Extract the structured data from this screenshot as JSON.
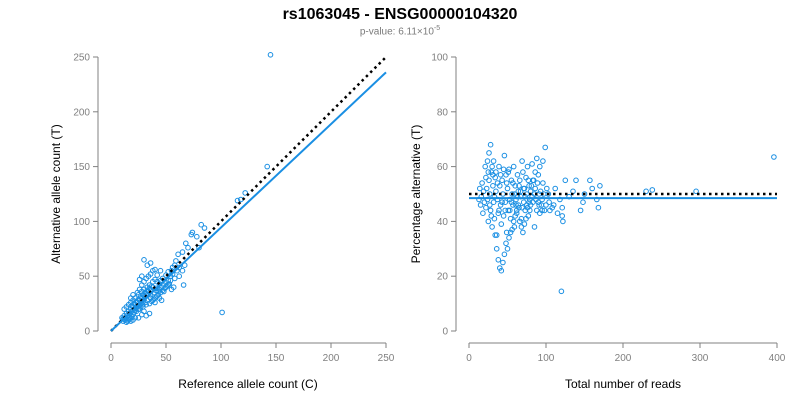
{
  "header": {
    "title": "rs1063045 - ENSG00000104320",
    "pvalue_label": "p-value: 6.11×10",
    "pvalue_exponent": "-5"
  },
  "colors": {
    "points": "#1a8fe3",
    "fit": "#1a8fe3",
    "reference": "#000000",
    "axis": "#808080"
  },
  "chart_data": [
    {
      "type": "scatter",
      "xlabel": "Reference allele count (C)",
      "ylabel": "Alternative allele count (T)",
      "xlim": [
        0,
        250
      ],
      "ylim": [
        0,
        250
      ],
      "xticks": [
        0,
        50,
        100,
        150,
        200,
        250
      ],
      "yticks": [
        0,
        50,
        100,
        150,
        200,
        250
      ],
      "grid": false,
      "reference_line": {
        "style": "dotted",
        "x": [
          0,
          250
        ],
        "y": [
          0,
          250
        ]
      },
      "fit_line": {
        "style": "solid",
        "x": [
          0,
          250
        ],
        "y": [
          0,
          236
        ]
      },
      "points": [
        [
          145,
          252
        ],
        [
          142,
          150
        ],
        [
          118,
          120
        ],
        [
          122,
          126
        ],
        [
          115,
          119
        ],
        [
          101,
          17
        ],
        [
          82,
          97
        ],
        [
          85,
          94
        ],
        [
          78,
          86
        ],
        [
          74,
          90
        ],
        [
          73,
          88
        ],
        [
          80,
          76
        ],
        [
          70,
          76
        ],
        [
          68,
          80
        ],
        [
          65,
          72
        ],
        [
          61,
          70
        ],
        [
          59,
          64
        ],
        [
          58,
          60
        ],
        [
          56,
          58
        ],
        [
          55,
          55
        ],
        [
          52,
          54
        ],
        [
          54,
          50
        ],
        [
          50,
          51
        ],
        [
          47,
          48
        ],
        [
          45,
          46
        ],
        [
          44,
          43
        ],
        [
          41,
          39
        ],
        [
          38,
          40
        ],
        [
          36,
          38
        ],
        [
          34,
          36
        ],
        [
          33,
          33
        ],
        [
          31,
          31
        ],
        [
          30,
          29
        ],
        [
          28,
          27
        ],
        [
          27,
          25
        ],
        [
          26,
          24
        ],
        [
          24,
          22
        ],
        [
          23,
          21
        ],
        [
          22,
          19
        ],
        [
          21,
          17
        ],
        [
          20,
          15
        ],
        [
          19,
          13
        ],
        [
          18,
          12
        ],
        [
          17,
          11
        ],
        [
          16,
          10
        ],
        [
          15,
          9
        ],
        [
          14,
          8
        ],
        [
          13,
          10
        ],
        [
          12,
          11
        ],
        [
          11,
          9
        ],
        [
          10,
          12
        ],
        [
          12,
          14
        ],
        [
          14,
          16
        ],
        [
          16,
          18
        ],
        [
          18,
          20
        ],
        [
          20,
          22
        ],
        [
          22,
          24
        ],
        [
          24,
          26
        ],
        [
          26,
          28
        ],
        [
          28,
          30
        ],
        [
          30,
          32
        ],
        [
          32,
          34
        ],
        [
          34,
          36
        ],
        [
          36,
          30
        ],
        [
          38,
          28
        ],
        [
          40,
          26
        ],
        [
          42,
          32
        ],
        [
          44,
          30
        ],
        [
          46,
          28
        ],
        [
          48,
          36
        ],
        [
          50,
          40
        ],
        [
          52,
          42
        ],
        [
          54,
          46
        ],
        [
          56,
          52
        ],
        [
          58,
          48
        ],
        [
          60,
          55
        ],
        [
          62,
          58
        ],
        [
          45,
          55
        ],
        [
          42,
          51
        ],
        [
          40,
          47
        ],
        [
          38,
          45
        ],
        [
          35,
          42
        ],
        [
          33,
          40
        ],
        [
          30,
          38
        ],
        [
          28,
          36
        ],
        [
          25,
          33
        ],
        [
          22,
          30
        ],
        [
          20,
          28
        ],
        [
          18,
          26
        ],
        [
          16,
          24
        ],
        [
          14,
          22
        ],
        [
          12,
          20
        ],
        [
          15,
          14
        ],
        [
          17,
          16
        ],
        [
          19,
          18
        ],
        [
          21,
          20
        ],
        [
          23,
          22
        ],
        [
          25,
          20
        ],
        [
          27,
          22
        ],
        [
          29,
          24
        ],
        [
          31,
          26
        ],
        [
          33,
          28
        ],
        [
          35,
          25
        ],
        [
          37,
          27
        ],
        [
          39,
          29
        ],
        [
          41,
          31
        ],
        [
          43,
          33
        ],
        [
          45,
          35
        ],
        [
          47,
          37
        ],
        [
          49,
          39
        ],
        [
          51,
          41
        ],
        [
          53,
          43
        ],
        [
          55,
          38
        ],
        [
          57,
          40
        ],
        [
          25,
          12
        ],
        [
          28,
          15
        ],
        [
          30,
          18
        ],
        [
          32,
          14
        ],
        [
          35,
          16
        ],
        [
          20,
          10
        ],
        [
          22,
          12
        ],
        [
          18,
          9
        ],
        [
          16,
          12
        ],
        [
          13,
          12
        ],
        [
          11,
          11
        ],
        [
          19,
          23
        ],
        [
          21,
          25
        ],
        [
          23,
          27
        ],
        [
          25,
          29
        ],
        [
          27,
          31
        ],
        [
          29,
          33
        ],
        [
          31,
          35
        ],
        [
          33,
          37
        ],
        [
          35,
          39
        ],
        [
          37,
          41
        ],
        [
          24,
          35
        ],
        [
          26,
          38
        ],
        [
          28,
          42
        ],
        [
          30,
          45
        ],
        [
          32,
          48
        ],
        [
          34,
          50
        ],
        [
          36,
          52
        ],
        [
          38,
          55
        ],
        [
          40,
          56
        ],
        [
          30,
          65
        ],
        [
          33,
          60
        ],
        [
          36,
          62
        ],
        [
          28,
          50
        ],
        [
          26,
          47
        ],
        [
          42,
          45
        ],
        [
          44,
          38
        ],
        [
          46,
          40
        ],
        [
          48,
          42
        ],
        [
          50,
          44
        ],
        [
          52,
          46
        ],
        [
          62,
          50
        ],
        [
          65,
          55
        ],
        [
          67,
          60
        ],
        [
          66,
          42
        ],
        [
          20,
          33
        ],
        [
          18,
          30
        ],
        [
          23,
          18
        ],
        [
          26,
          20
        ],
        [
          29,
          22
        ],
        [
          32,
          24
        ],
        [
          39,
          35
        ],
        [
          41,
          37
        ],
        [
          43,
          36
        ],
        [
          36,
          33
        ]
      ]
    },
    {
      "type": "scatter",
      "xlabel": "Total number of reads",
      "ylabel": "Percentage alternative (T)",
      "xlim": [
        0,
        400
      ],
      "ylim": [
        0,
        100
      ],
      "xticks": [
        0,
        100,
        200,
        300,
        400
      ],
      "yticks": [
        0,
        20,
        40,
        60,
        80,
        100
      ],
      "grid": false,
      "reference_line": {
        "style": "dotted",
        "x": [
          0,
          400
        ],
        "y": [
          50,
          50
        ]
      },
      "fit_line": {
        "style": "solid",
        "x": [
          0,
          400
        ],
        "y": [
          48.5,
          48.5
        ]
      },
      "points": [
        [
          396,
          63.5
        ],
        [
          295,
          51
        ],
        [
          238,
          51.5
        ],
        [
          230,
          51
        ],
        [
          170,
          53
        ],
        [
          166,
          48
        ],
        [
          168,
          45
        ],
        [
          157,
          55
        ],
        [
          148,
          47
        ],
        [
          139,
          55
        ],
        [
          120,
          14.5
        ],
        [
          121,
          42
        ],
        [
          121,
          45
        ],
        [
          122,
          40
        ],
        [
          118,
          48
        ],
        [
          112,
          52
        ],
        [
          108,
          45
        ],
        [
          104,
          47
        ],
        [
          101,
          52
        ],
        [
          98,
          44
        ],
        [
          99,
          67
        ],
        [
          96,
          62
        ],
        [
          95,
          48
        ],
        [
          92,
          60
        ],
        [
          91,
          50
        ],
        [
          90,
          57
        ],
        [
          88,
          44
        ],
        [
          86,
          52
        ],
        [
          85,
          38
        ],
        [
          83,
          55
        ],
        [
          82,
          61
        ],
        [
          80,
          46
        ],
        [
          79,
          48
        ],
        [
          78,
          53
        ],
        [
          77,
          42
        ],
        [
          76,
          60
        ],
        [
          75,
          50
        ],
        [
          74,
          56
        ],
        [
          73,
          44
        ],
        [
          72,
          52
        ],
        [
          71,
          47
        ],
        [
          70,
          58
        ],
        [
          69,
          62
        ],
        [
          68,
          41
        ],
        [
          67,
          49
        ],
        [
          66,
          55
        ],
        [
          65,
          45
        ],
        [
          64,
          51
        ],
        [
          63,
          57
        ],
        [
          62,
          43
        ],
        [
          61,
          48
        ],
        [
          60,
          53
        ],
        [
          59,
          38
        ],
        [
          58,
          60
        ],
        [
          57,
          46
        ],
        [
          56,
          50
        ],
        [
          55,
          55
        ],
        [
          54,
          41
        ],
        [
          53,
          48
        ],
        [
          52,
          59
        ],
        [
          51,
          44
        ],
        [
          50,
          52
        ],
        [
          49,
          36
        ],
        [
          48,
          57
        ],
        [
          47,
          47
        ],
        [
          46,
          64
        ],
        [
          45,
          42
        ],
        [
          44,
          50
        ],
        [
          43,
          55
        ],
        [
          42,
          39
        ],
        [
          41,
          46
        ],
        [
          40,
          53
        ],
        [
          39,
          60
        ],
        [
          38,
          43
        ],
        [
          37,
          48
        ],
        [
          36,
          35
        ],
        [
          35,
          51
        ],
        [
          34,
          56
        ],
        [
          33,
          41
        ],
        [
          32,
          47
        ],
        [
          31,
          53
        ],
        [
          30,
          38
        ],
        [
          29,
          58
        ],
        [
          28,
          44
        ],
        [
          27,
          50
        ],
        [
          26,
          55
        ],
        [
          25,
          40
        ],
        [
          24,
          48
        ],
        [
          23,
          52
        ],
        [
          22,
          45
        ],
        [
          21,
          60
        ],
        [
          20,
          47
        ],
        [
          19,
          51
        ],
        [
          18,
          43
        ],
        [
          17,
          54
        ],
        [
          16,
          49
        ],
        [
          15,
          46
        ],
        [
          14,
          52
        ],
        [
          13,
          48
        ],
        [
          22,
          56
        ],
        [
          24,
          62
        ],
        [
          26,
          65
        ],
        [
          28,
          68
        ],
        [
          30,
          60
        ],
        [
          32,
          62
        ],
        [
          34,
          35
        ],
        [
          36,
          30
        ],
        [
          38,
          26
        ],
        [
          40,
          23
        ],
        [
          42,
          22
        ],
        [
          44,
          25
        ],
        [
          46,
          28
        ],
        [
          48,
          32
        ],
        [
          50,
          30
        ],
        [
          52,
          34
        ],
        [
          54,
          36
        ],
        [
          56,
          37
        ],
        [
          58,
          40
        ],
        [
          60,
          42
        ],
        [
          62,
          44
        ],
        [
          64,
          46
        ],
        [
          66,
          40
        ],
        [
          68,
          38
        ],
        [
          70,
          36
        ],
        [
          72,
          39
        ],
        [
          74,
          41
        ],
        [
          76,
          45
        ],
        [
          78,
          47
        ],
        [
          80,
          51
        ],
        [
          82,
          49
        ],
        [
          84,
          55
        ],
        [
          86,
          58
        ],
        [
          88,
          63
        ],
        [
          90,
          47
        ],
        [
          92,
          43
        ],
        [
          94,
          46
        ],
        [
          96,
          54
        ],
        [
          97,
          50
        ],
        [
          100,
          46
        ],
        [
          103,
          50
        ],
        [
          105,
          44
        ],
        [
          110,
          46
        ],
        [
          115,
          43
        ],
        [
          125,
          55
        ],
        [
          130,
          49
        ],
        [
          135,
          51
        ],
        [
          145,
          44
        ],
        [
          150,
          50
        ],
        [
          160,
          52
        ],
        [
          25,
          58
        ],
        [
          27,
          46
        ],
        [
          29,
          42
        ],
        [
          31,
          57
        ],
        [
          33,
          49
        ],
        [
          35,
          58
        ],
        [
          37,
          54
        ],
        [
          39,
          44
        ],
        [
          41,
          57
        ],
        [
          43,
          47
        ],
        [
          45,
          59
        ],
        [
          47,
          44
        ],
        [
          49,
          54
        ],
        [
          51,
          58
        ],
        [
          53,
          44
        ],
        [
          55,
          47
        ],
        [
          57,
          54
        ],
        [
          59,
          50
        ],
        [
          61,
          46
        ],
        [
          63,
          49
        ],
        [
          65,
          53
        ],
        [
          67,
          51
        ],
        [
          69,
          45
        ],
        [
          71,
          52
        ],
        [
          73,
          49
        ],
        [
          75,
          46
        ],
        [
          77,
          55
        ],
        [
          79,
          44
        ],
        [
          81,
          53
        ],
        [
          83,
          47
        ],
        [
          85,
          50
        ],
        [
          87,
          48
        ],
        [
          89,
          54
        ],
        [
          91,
          46
        ],
        [
          93,
          51
        ],
        [
          95,
          44
        ]
      ]
    }
  ]
}
